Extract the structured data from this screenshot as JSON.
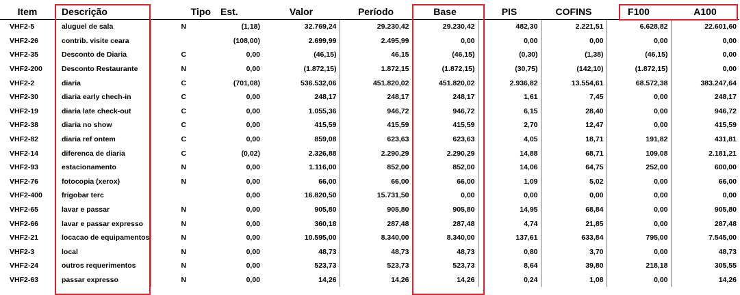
{
  "columns": {
    "item": "Item",
    "descricao": "Descrição",
    "tipo": "Tipo",
    "est": "Est.",
    "valor": "Valor",
    "periodo": "Período",
    "base": "Base",
    "pis": "PIS",
    "cofins": "COFINS",
    "f100": "F100",
    "a100": "A100"
  },
  "rows": [
    {
      "item": "VHF2-5",
      "descricao": "aluguel de sala",
      "tipo": "N",
      "est": "(1,18)",
      "valor": "32.769,24",
      "periodo": "29.230,42",
      "base": "29.230,42",
      "pis": "482,30",
      "cofins": "2.221,51",
      "f100": "6.628,82",
      "a100": "22.601,60"
    },
    {
      "item": "VHF2-26",
      "descricao": "contrib. visite ceara",
      "tipo": "",
      "est": "(108,00)",
      "valor": "2.699,99",
      "periodo": "2.495,99",
      "base": "0,00",
      "pis": "0,00",
      "cofins": "0,00",
      "f100": "0,00",
      "a100": "0,00"
    },
    {
      "item": "VHF2-35",
      "descricao": "Desconto de Diaria",
      "tipo": "C",
      "est": "0,00",
      "valor": "(46,15)",
      "periodo": "46,15",
      "base": "(46,15)",
      "pis": "(0,30)",
      "cofins": "(1,38)",
      "f100": "(46,15)",
      "a100": "0,00"
    },
    {
      "item": "VHF2-200",
      "descricao": "Desconto Restaurante",
      "tipo": "N",
      "est": "0,00",
      "valor": "(1.872,15)",
      "periodo": "1.872,15",
      "base": "(1.872,15)",
      "pis": "(30,75)",
      "cofins": "(142,10)",
      "f100": "(1.872,15)",
      "a100": "0,00"
    },
    {
      "item": "VHF2-2",
      "descricao": "diaria",
      "tipo": "C",
      "est": "(701,08)",
      "valor": "536.532,06",
      "periodo": "451.820,02",
      "base": "451.820,02",
      "pis": "2.936,82",
      "cofins": "13.554,61",
      "f100": "68.572,38",
      "a100": "383.247,64"
    },
    {
      "item": "VHF2-30",
      "descricao": "diaria early chech-in",
      "tipo": "C",
      "est": "0,00",
      "valor": "248,17",
      "periodo": "248,17",
      "base": "248,17",
      "pis": "1,61",
      "cofins": "7,45",
      "f100": "0,00",
      "a100": "248,17"
    },
    {
      "item": "VHF2-19",
      "descricao": "diaria late check-out",
      "tipo": "C",
      "est": "0,00",
      "valor": "1.055,36",
      "periodo": "946,72",
      "base": "946,72",
      "pis": "6,15",
      "cofins": "28,40",
      "f100": "0,00",
      "a100": "946,72"
    },
    {
      "item": "VHF2-38",
      "descricao": "diaria no show",
      "tipo": "C",
      "est": "0,00",
      "valor": "415,59",
      "periodo": "415,59",
      "base": "415,59",
      "pis": "2,70",
      "cofins": "12,47",
      "f100": "0,00",
      "a100": "415,59"
    },
    {
      "item": "VHF2-82",
      "descricao": "diaria ref ontem",
      "tipo": "C",
      "est": "0,00",
      "valor": "859,08",
      "periodo": "623,63",
      "base": "623,63",
      "pis": "4,05",
      "cofins": "18,71",
      "f100": "191,82",
      "a100": "431,81"
    },
    {
      "item": "VHF2-14",
      "descricao": "diferenca de diaria",
      "tipo": "C",
      "est": "(0,02)",
      "valor": "2.326,88",
      "periodo": "2.290,29",
      "base": "2.290,29",
      "pis": "14,88",
      "cofins": "68,71",
      "f100": "109,08",
      "a100": "2.181,21"
    },
    {
      "item": "VHF2-93",
      "descricao": "estacionamento",
      "tipo": "N",
      "est": "0,00",
      "valor": "1.116,00",
      "periodo": "852,00",
      "base": "852,00",
      "pis": "14,06",
      "cofins": "64,75",
      "f100": "252,00",
      "a100": "600,00"
    },
    {
      "item": "VHF2-76",
      "descricao": "fotocopia (xerox)",
      "tipo": "N",
      "est": "0,00",
      "valor": "66,00",
      "periodo": "66,00",
      "base": "66,00",
      "pis": "1,09",
      "cofins": "5,02",
      "f100": "0,00",
      "a100": "66,00"
    },
    {
      "item": "VHF2-400",
      "descricao": "frigobar terc",
      "tipo": "",
      "est": "0,00",
      "valor": "16.820,50",
      "periodo": "15.731,50",
      "base": "0,00",
      "pis": "0,00",
      "cofins": "0,00",
      "f100": "0,00",
      "a100": "0,00"
    },
    {
      "item": "VHF2-65",
      "descricao": "lavar e passar",
      "tipo": "N",
      "est": "0,00",
      "valor": "905,80",
      "periodo": "905,80",
      "base": "905,80",
      "pis": "14,95",
      "cofins": "68,84",
      "f100": "0,00",
      "a100": "905,80"
    },
    {
      "item": "VHF2-66",
      "descricao": "lavar e passar expresso",
      "tipo": "N",
      "est": "0,00",
      "valor": "360,18",
      "periodo": "287,48",
      "base": "287,48",
      "pis": "4,74",
      "cofins": "21,85",
      "f100": "0,00",
      "a100": "287,48"
    },
    {
      "item": "VHF2-21",
      "descricao": "locacao de equipamentos",
      "tipo": "N",
      "est": "0,00",
      "valor": "10.595,00",
      "periodo": "8.340,00",
      "base": "8.340,00",
      "pis": "137,61",
      "cofins": "633,84",
      "f100": "795,00",
      "a100": "7.545,00"
    },
    {
      "item": "VHF2-3",
      "descricao": "local",
      "tipo": "N",
      "est": "0,00",
      "valor": "48,73",
      "periodo": "48,73",
      "base": "48,73",
      "pis": "0,80",
      "cofins": "3,70",
      "f100": "0,00",
      "a100": "48,73"
    },
    {
      "item": "VHF2-24",
      "descricao": "outros requerimentos",
      "tipo": "N",
      "est": "0,00",
      "valor": "523,73",
      "periodo": "523,73",
      "base": "523,73",
      "pis": "8,64",
      "cofins": "39,80",
      "f100": "218,18",
      "a100": "305,55"
    },
    {
      "item": "VHF2-63",
      "descricao": "passar expresso",
      "tipo": "N",
      "est": "0,00",
      "valor": "14,26",
      "periodo": "14,26",
      "base": "14,26",
      "pis": "0,24",
      "cofins": "1,08",
      "f100": "0,00",
      "a100": "14,26"
    }
  ],
  "highlight_color": "#e0202a"
}
